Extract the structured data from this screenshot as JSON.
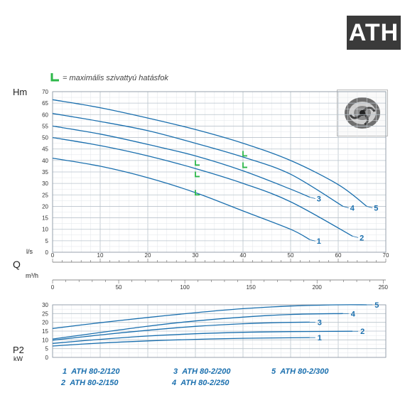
{
  "header": {
    "logo": "ATH",
    "note_text": "= maximális szivattyú hatásfok",
    "note_color": "#2db84a"
  },
  "colors": {
    "curve": "#1a6fae",
    "grid_major": "#b9c3cc",
    "grid_minor": "#e2e6ea",
    "label": "#1a6fae",
    "efficiency_mark": "#2db84a"
  },
  "axis_labels": {
    "head": "Hm",
    "flow": "Q",
    "flow_ls": "l/s",
    "flow_m3h": "m³/h",
    "power": "P2",
    "power_unit": "kW"
  },
  "legend": [
    {
      "num": "1",
      "model": "ATH 80-2/120"
    },
    {
      "num": "2",
      "model": "ATH 80-2/150"
    },
    {
      "num": "3",
      "model": "ATH 80-2/200"
    },
    {
      "num": "4",
      "model": "ATH 80-2/250"
    },
    {
      "num": "5",
      "model": "ATH 80-2/300"
    }
  ],
  "chart_data": [
    {
      "type": "line",
      "title": "",
      "xlabel": "l/s",
      "ylabel": "Hm",
      "xlim": [
        0,
        70
      ],
      "ylim": [
        0,
        70
      ],
      "x_ticks": [
        0,
        10,
        20,
        30,
        40,
        50,
        60,
        70
      ],
      "y_ticks": [
        0,
        5,
        10,
        15,
        20,
        25,
        30,
        35,
        40,
        45,
        50,
        55,
        60,
        65,
        70
      ],
      "secondary_x_label": "m³/h",
      "secondary_x_ticks": [
        0,
        50,
        100,
        150,
        200,
        250
      ],
      "grid": true,
      "series": [
        {
          "name": "1",
          "x": [
            0,
            10,
            20,
            30,
            40,
            50,
            54
          ],
          "y": [
            41,
            37.5,
            32.5,
            26,
            18,
            10,
            5.5
          ]
        },
        {
          "name": "2",
          "x": [
            0,
            10,
            20,
            30,
            40,
            50,
            63
          ],
          "y": [
            50,
            46.5,
            42,
            36.5,
            30,
            22,
            7
          ]
        },
        {
          "name": "3",
          "x": [
            0,
            10,
            20,
            30,
            40,
            50,
            54
          ],
          "y": [
            55,
            51.5,
            47,
            42,
            35.5,
            27.5,
            24
          ]
        },
        {
          "name": "4",
          "x": [
            0,
            10,
            20,
            30,
            40,
            50,
            61
          ],
          "y": [
            60.5,
            57,
            53,
            47.5,
            41.5,
            34,
            20
          ]
        },
        {
          "name": "5",
          "x": [
            0,
            10,
            20,
            30,
            40,
            50,
            60,
            66
          ],
          "y": [
            66.5,
            63,
            58.5,
            53.5,
            47.5,
            40,
            29.5,
            20
          ]
        }
      ],
      "efficiency_points": [
        {
          "series": "1",
          "x": 30,
          "y": 25
        },
        {
          "series": "2",
          "x": 30,
          "y": 33
        },
        {
          "series": "3",
          "x": 30,
          "y": 38
        },
        {
          "series": "4",
          "x": 40,
          "y": 37
        },
        {
          "series": "5",
          "x": 40,
          "y": 42
        }
      ]
    },
    {
      "type": "line",
      "title": "",
      "xlabel": "l/s",
      "ylabel": "P2 kW",
      "xlim": [
        0,
        70
      ],
      "ylim": [
        0,
        30
      ],
      "y_ticks": [
        0,
        5,
        10,
        15,
        20,
        25,
        30
      ],
      "grid": true,
      "series": [
        {
          "name": "1",
          "x": [
            0,
            10,
            20,
            30,
            40,
            54
          ],
          "y": [
            6.5,
            8.2,
            9.4,
            10.3,
            10.9,
            11.3
          ]
        },
        {
          "name": "2",
          "x": [
            0,
            10,
            20,
            30,
            40,
            50,
            63
          ],
          "y": [
            8,
            10.3,
            12.2,
            13.5,
            14.3,
            14.7,
            14.9
          ]
        },
        {
          "name": "3",
          "x": [
            0,
            10,
            20,
            30,
            40,
            50,
            54
          ],
          "y": [
            9.8,
            12.8,
            15.5,
            17.7,
            19.2,
            20,
            20.1
          ]
        },
        {
          "name": "4",
          "x": [
            0,
            10,
            20,
            30,
            40,
            50,
            61
          ],
          "y": [
            10.5,
            14.2,
            17.8,
            20.8,
            23,
            24.5,
            25
          ]
        },
        {
          "name": "5",
          "x": [
            0,
            10,
            20,
            30,
            40,
            50,
            60,
            66
          ],
          "y": [
            16.5,
            19.8,
            22.8,
            25.5,
            27.8,
            29.3,
            30,
            30
          ]
        }
      ]
    }
  ]
}
